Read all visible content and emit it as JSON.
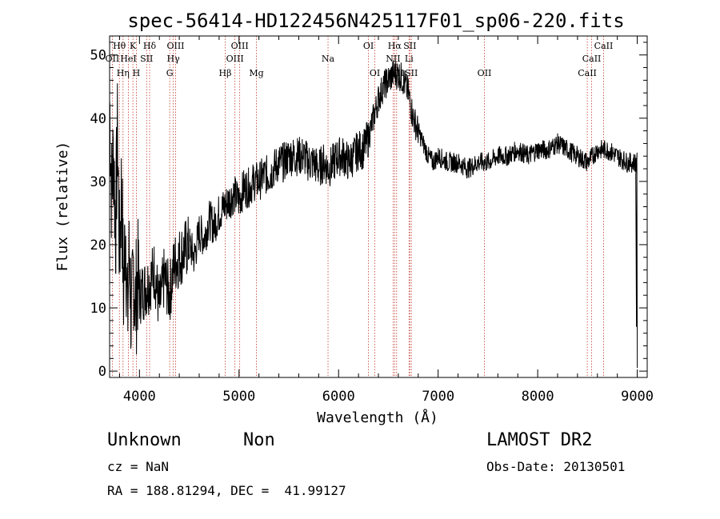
{
  "chart_data": {
    "type": "line",
    "title": "spec-56414-HD122456N425117F01_sp06-220.fits",
    "xlabel": "Wavelength (Å)",
    "ylabel": "Flux (relative)",
    "xlim": [
      3700,
      9100
    ],
    "ylim": [
      -1,
      53
    ],
    "xticks": [
      4000,
      5000,
      6000,
      7000,
      8000,
      9000
    ],
    "yticks": [
      0,
      10,
      20,
      30,
      40,
      50
    ],
    "grid": false,
    "line_color": "#000000",
    "line_marker_color": "#c0392b",
    "series": [
      {
        "x": [
          3700,
          3720,
          3740,
          3760,
          3780,
          3800,
          3820,
          3840,
          3860,
          3880,
          3900,
          3920,
          3940,
          3960,
          3980,
          4000,
          4050,
          4100,
          4150,
          4200,
          4250,
          4300,
          4350,
          4400,
          4450,
          4500,
          4550,
          4600,
          4650,
          4700,
          4750,
          4800,
          4850,
          4900,
          4950,
          5000,
          5050,
          5100,
          5150,
          5200,
          5250,
          5300,
          5350,
          5400,
          5450,
          5500,
          5550,
          5600,
          5650,
          5700,
          5750,
          5800,
          5850,
          5900,
          5950,
          6000,
          6050,
          6100,
          6150,
          6200,
          6250,
          6300,
          6350,
          6400,
          6450,
          6500,
          6550,
          6600,
          6650,
          6700,
          6750,
          6800,
          6850,
          6900,
          6950,
          7000,
          7100,
          7200,
          7300,
          7400,
          7500,
          7600,
          7700,
          7800,
          7900,
          8000,
          8100,
          8200,
          8300,
          8400,
          8500,
          8600,
          8700,
          8800,
          8900,
          8960,
          9000
        ],
        "y": [
          43,
          28,
          35,
          22,
          38,
          18,
          30,
          12,
          24,
          8,
          20,
          6,
          17,
          10,
          15,
          12,
          13,
          14,
          16,
          10,
          15,
          12,
          17,
          18,
          19,
          20,
          18,
          22,
          21,
          24,
          23,
          25,
          26,
          27,
          28,
          27,
          29,
          29,
          30,
          30,
          31,
          31,
          32,
          33,
          33,
          34,
          34,
          34,
          34,
          33,
          33,
          32,
          33,
          32,
          33,
          34,
          34,
          33,
          34,
          35,
          35,
          37,
          40,
          43,
          45,
          46,
          47,
          47,
          46,
          44,
          40,
          38,
          36,
          34,
          33,
          34,
          33,
          33,
          32,
          33,
          33,
          34,
          34,
          35,
          34,
          35,
          35,
          36,
          35,
          34,
          33,
          35,
          35,
          34,
          33,
          33,
          33
        ]
      }
    ],
    "line_markers": [
      {
        "label": "OII",
        "x": 3727,
        "row": 2
      },
      {
        "label": "Hθ",
        "x": 3798,
        "row": 1
      },
      {
        "label": "Hη",
        "x": 3835,
        "row": 3
      },
      {
        "label": "HeI",
        "x": 3889,
        "row": 2
      },
      {
        "label": "K",
        "x": 3934,
        "row": 1
      },
      {
        "label": "H",
        "x": 3969,
        "row": 3
      },
      {
        "label": "SII",
        "x": 4072,
        "row": 2
      },
      {
        "label": "Hδ",
        "x": 4102,
        "row": 1
      },
      {
        "label": "G",
        "x": 4304,
        "row": 3
      },
      {
        "label": "Hγ",
        "x": 4340,
        "row": 2
      },
      {
        "label": "OIII",
        "x": 4363,
        "row": 1
      },
      {
        "label": "Hβ",
        "x": 4861,
        "row": 3
      },
      {
        "label": "OIII",
        "x": 4959,
        "row": 2
      },
      {
        "label": "OIII",
        "x": 5007,
        "row": 1
      },
      {
        "label": "Mg",
        "x": 5175,
        "row": 3
      },
      {
        "label": "Na",
        "x": 5894,
        "row": 2
      },
      {
        "label": "OI",
        "x": 6300,
        "row": 1
      },
      {
        "label": "OI",
        "x": 6364,
        "row": 3
      },
      {
        "label": "NII",
        "x": 6548,
        "row": 2
      },
      {
        "label": "Hα",
        "x": 6563,
        "row": 1
      },
      {
        "label": "NII",
        "x": 6583,
        "row": 3
      },
      {
        "label": "Li",
        "x": 6708,
        "row": 2
      },
      {
        "label": "SII",
        "x": 6716,
        "row": 1
      },
      {
        "label": "SII",
        "x": 6731,
        "row": 3
      },
      {
        "label": "OII",
        "x": 7465,
        "row": 3
      },
      {
        "label": "CaII",
        "x": 8498,
        "row": 3
      },
      {
        "label": "CaII",
        "x": 8542,
        "row": 2
      },
      {
        "label": "CaII",
        "x": 8662,
        "row": 1
      }
    ]
  },
  "info": {
    "object_class": "Unknown",
    "object_subclass": "Non",
    "cz": "cz = NaN",
    "coords": "RA = 188.81294, DEC =  41.99127",
    "survey": "LAMOST DR2",
    "obs_date": "Obs-Date: 20130501"
  }
}
